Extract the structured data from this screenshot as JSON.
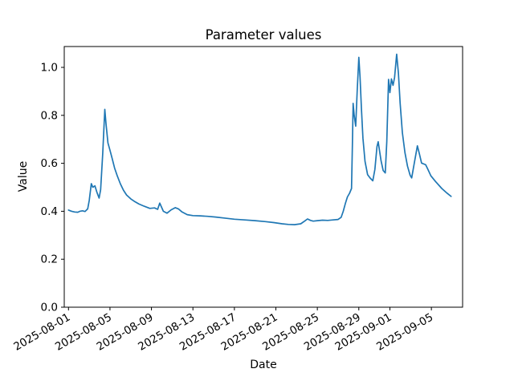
{
  "chart_data": {
    "type": "line",
    "title": "Parameter values",
    "xlabel": "Date",
    "ylabel": "Value",
    "grid": false,
    "legend_position": "none",
    "line_color": "#1f77b4",
    "background_color": "#ffffff",
    "axis_color": "#000000",
    "x_unit": "days since 2025-08-01",
    "xlim_days": [
      -0.41,
      38.01
    ],
    "ylim": [
      0,
      1.087
    ],
    "x_ticks": [
      {
        "label": "2025-08-01",
        "day": 0
      },
      {
        "label": "2025-08-05",
        "day": 4
      },
      {
        "label": "2025-08-09",
        "day": 8
      },
      {
        "label": "2025-08-13",
        "day": 12
      },
      {
        "label": "2025-08-17",
        "day": 16
      },
      {
        "label": "2025-08-21",
        "day": 20
      },
      {
        "label": "2025-08-25",
        "day": 24
      },
      {
        "label": "2025-08-29",
        "day": 28
      },
      {
        "label": "2025-09-01",
        "day": 31
      },
      {
        "label": "2025-09-05",
        "day": 35
      }
    ],
    "y_ticks": [
      {
        "label": "0.0",
        "value": 0.0
      },
      {
        "label": "0.2",
        "value": 0.2
      },
      {
        "label": "0.4",
        "value": 0.4
      },
      {
        "label": "0.6",
        "value": 0.6
      },
      {
        "label": "0.8",
        "value": 0.8
      },
      {
        "label": "1.0",
        "value": 1.0
      }
    ],
    "series": [
      {
        "points": [
          [
            0.0,
            0.405
          ],
          [
            0.3,
            0.4
          ],
          [
            0.6,
            0.397
          ],
          [
            0.9,
            0.396
          ],
          [
            1.1,
            0.4
          ],
          [
            1.35,
            0.402
          ],
          [
            1.6,
            0.399
          ],
          [
            1.85,
            0.41
          ],
          [
            2.0,
            0.445
          ],
          [
            2.2,
            0.515
          ],
          [
            2.35,
            0.5
          ],
          [
            2.55,
            0.506
          ],
          [
            2.75,
            0.478
          ],
          [
            2.95,
            0.455
          ],
          [
            3.1,
            0.49
          ],
          [
            3.3,
            0.64
          ],
          [
            3.5,
            0.825
          ],
          [
            3.62,
            0.765
          ],
          [
            3.8,
            0.685
          ],
          [
            4.0,
            0.655
          ],
          [
            4.2,
            0.622
          ],
          [
            4.45,
            0.58
          ],
          [
            4.7,
            0.548
          ],
          [
            5.0,
            0.515
          ],
          [
            5.3,
            0.488
          ],
          [
            5.6,
            0.468
          ],
          [
            6.0,
            0.452
          ],
          [
            6.4,
            0.44
          ],
          [
            6.8,
            0.43
          ],
          [
            7.3,
            0.421
          ],
          [
            7.85,
            0.412
          ],
          [
            8.3,
            0.414
          ],
          [
            8.6,
            0.408
          ],
          [
            8.8,
            0.434
          ],
          [
            9.15,
            0.4
          ],
          [
            9.5,
            0.392
          ],
          [
            9.9,
            0.406
          ],
          [
            10.3,
            0.415
          ],
          [
            10.6,
            0.41
          ],
          [
            10.95,
            0.397
          ],
          [
            11.45,
            0.386
          ],
          [
            12.0,
            0.382
          ],
          [
            12.7,
            0.381
          ],
          [
            13.4,
            0.379
          ],
          [
            14.2,
            0.376
          ],
          [
            15.0,
            0.372
          ],
          [
            16.0,
            0.367
          ],
          [
            17.0,
            0.364
          ],
          [
            18.0,
            0.361
          ],
          [
            19.0,
            0.357
          ],
          [
            19.8,
            0.353
          ],
          [
            20.6,
            0.348
          ],
          [
            21.2,
            0.345
          ],
          [
            21.8,
            0.344
          ],
          [
            22.4,
            0.348
          ],
          [
            22.8,
            0.36
          ],
          [
            23.05,
            0.368
          ],
          [
            23.35,
            0.362
          ],
          [
            23.6,
            0.359
          ],
          [
            24.0,
            0.361
          ],
          [
            24.5,
            0.363
          ],
          [
            25.0,
            0.362
          ],
          [
            25.5,
            0.364
          ],
          [
            26.0,
            0.366
          ],
          [
            26.3,
            0.375
          ],
          [
            26.5,
            0.4
          ],
          [
            26.7,
            0.432
          ],
          [
            26.9,
            0.46
          ],
          [
            27.1,
            0.475
          ],
          [
            27.3,
            0.495
          ],
          [
            27.38,
            0.68
          ],
          [
            27.45,
            0.85
          ],
          [
            27.55,
            0.8
          ],
          [
            27.7,
            0.755
          ],
          [
            27.85,
            0.905
          ],
          [
            28.0,
            1.042
          ],
          [
            28.12,
            0.96
          ],
          [
            28.25,
            0.83
          ],
          [
            28.4,
            0.705
          ],
          [
            28.6,
            0.608
          ],
          [
            28.85,
            0.553
          ],
          [
            29.1,
            0.538
          ],
          [
            29.35,
            0.527
          ],
          [
            29.55,
            0.575
          ],
          [
            29.75,
            0.67
          ],
          [
            29.87,
            0.69
          ],
          [
            30.0,
            0.652
          ],
          [
            30.15,
            0.61
          ],
          [
            30.35,
            0.57
          ],
          [
            30.55,
            0.56
          ],
          [
            30.7,
            0.69
          ],
          [
            30.87,
            0.95
          ],
          [
            31.0,
            0.895
          ],
          [
            31.15,
            0.952
          ],
          [
            31.3,
            0.925
          ],
          [
            31.45,
            0.958
          ],
          [
            31.65,
            1.055
          ],
          [
            31.82,
            0.975
          ],
          [
            31.98,
            0.852
          ],
          [
            32.2,
            0.728
          ],
          [
            32.45,
            0.645
          ],
          [
            32.7,
            0.588
          ],
          [
            32.95,
            0.55
          ],
          [
            33.1,
            0.539
          ],
          [
            33.35,
            0.6
          ],
          [
            33.65,
            0.673
          ],
          [
            33.85,
            0.638
          ],
          [
            34.05,
            0.601
          ],
          [
            34.45,
            0.594
          ],
          [
            34.65,
            0.576
          ],
          [
            34.95,
            0.548
          ],
          [
            35.4,
            0.524
          ],
          [
            36.0,
            0.495
          ],
          [
            36.5,
            0.476
          ],
          [
            36.9,
            0.462
          ]
        ]
      }
    ]
  }
}
